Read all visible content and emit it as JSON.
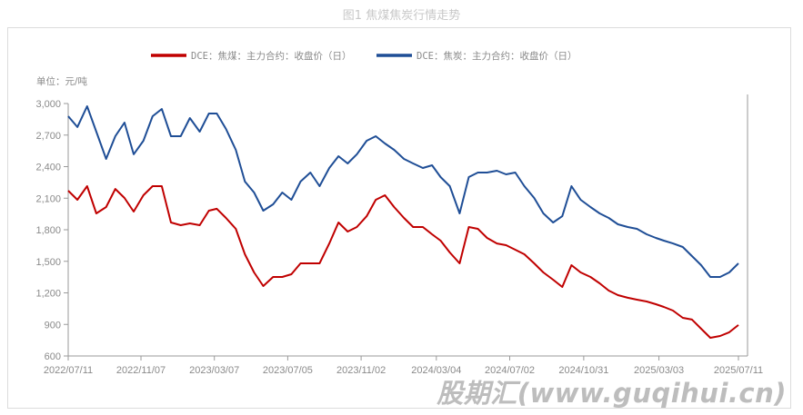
{
  "title": "图1 焦煤焦炭行情走势",
  "watermark": "股期汇(www.guqihui.cn)",
  "chart_data": {
    "type": "line",
    "title": "图1 焦煤焦炭行情走势",
    "unit_label": "单位：元/吨",
    "ylim": [
      600,
      3000
    ],
    "yticks": [
      "3,000",
      "2,700",
      "2,400",
      "2,100",
      "1,800",
      "1,500",
      "1,200",
      "900",
      "600"
    ],
    "ytick_values": [
      3000,
      2700,
      2400,
      2100,
      1800,
      1500,
      1200,
      900,
      600
    ],
    "xlim": [
      "2022/07/11",
      "2025/07/11"
    ],
    "xticks": [
      "2022/07/11",
      "2022/11/07",
      "2023/03/07",
      "2023/07/05",
      "2023/11/02",
      "2024/03/04",
      "2024/07/02",
      "2024/10/31",
      "2025/03/03",
      "2025/07/11"
    ],
    "grid": false,
    "legend_position": "top",
    "x": [
      "2022/07/11",
      "2022/07/26",
      "2022/08/11",
      "2022/08/26",
      "2022/09/11",
      "2022/09/26",
      "2022/10/11",
      "2022/10/26",
      "2022/11/11",
      "2022/11/26",
      "2022/12/11",
      "2022/12/26",
      "2023/01/11",
      "2023/01/26",
      "2023/02/11",
      "2023/02/26",
      "2023/03/11",
      "2023/03/26",
      "2023/04/11",
      "2023/04/26",
      "2023/05/11",
      "2023/05/26",
      "2023/06/11",
      "2023/06/26",
      "2023/07/11",
      "2023/07/26",
      "2023/08/11",
      "2023/08/26",
      "2023/09/11",
      "2023/09/26",
      "2023/10/11",
      "2023/10/26",
      "2023/11/11",
      "2023/11/26",
      "2023/12/11",
      "2023/12/26",
      "2024/01/11",
      "2024/01/26",
      "2024/02/11",
      "2024/02/26",
      "2024/03/11",
      "2024/03/26",
      "2024/04/11",
      "2024/04/26",
      "2024/05/11",
      "2024/05/26",
      "2024/06/11",
      "2024/06/26",
      "2024/07/11",
      "2024/07/26",
      "2024/08/11",
      "2024/08/26",
      "2024/09/11",
      "2024/09/26",
      "2024/10/11",
      "2024/10/26",
      "2024/11/11",
      "2024/11/26",
      "2024/12/11",
      "2024/12/26",
      "2025/01/11",
      "2025/01/26",
      "2025/02/11",
      "2025/02/26",
      "2025/03/11",
      "2025/03/26",
      "2025/04/11",
      "2025/04/26",
      "2025/05/11",
      "2025/05/26",
      "2025/06/11",
      "2025/06/26",
      "2025/07/11"
    ],
    "series": [
      {
        "name": "DCE：焦煤：主力合约：收盘价（日）",
        "color": "#c00000",
        "values": [
          2171,
          2085,
          2214,
          1955,
          2016,
          2188,
          2102,
          1973,
          2128,
          2214,
          2214,
          1869,
          1843,
          1860,
          1843,
          1981,
          1999,
          1912,
          1809,
          1567,
          1394,
          1265,
          1351,
          1351,
          1377,
          1481,
          1481,
          1481,
          1670,
          1869,
          1783,
          1826,
          1929,
          2085,
          2128,
          2016,
          1912,
          1826,
          1826,
          1757,
          1696,
          1584,
          1481,
          1826,
          1809,
          1722,
          1670,
          1653,
          1610,
          1567,
          1481,
          1394,
          1325,
          1256,
          1463,
          1394,
          1351,
          1291,
          1222,
          1178,
          1153,
          1135,
          1118,
          1092,
          1066,
          1032,
          963,
          946,
          859,
          773,
          790,
          825,
          894
        ]
      },
      {
        "name": "DCE：焦炭：主力合约：收盘价（日）",
        "color": "#1f4e96",
        "values": [
          2879,
          2776,
          2974,
          2732,
          2473,
          2689,
          2819,
          2517,
          2646,
          2879,
          2948,
          2689,
          2689,
          2862,
          2732,
          2905,
          2905,
          2758,
          2560,
          2258,
          2154,
          1981,
          2042,
          2154,
          2085,
          2258,
          2344,
          2214,
          2387,
          2499,
          2430,
          2517,
          2646,
          2689,
          2620,
          2560,
          2473,
          2430,
          2387,
          2413,
          2301,
          2214,
          1955,
          2301,
          2344,
          2344,
          2361,
          2327,
          2344,
          2214,
          2102,
          1955,
          1869,
          1929,
          2214,
          2085,
          2016,
          1955,
          1912,
          1852,
          1826,
          1809,
          1757,
          1722,
          1696,
          1670,
          1636,
          1550,
          1463,
          1351,
          1351,
          1394,
          1481
        ]
      }
    ]
  }
}
